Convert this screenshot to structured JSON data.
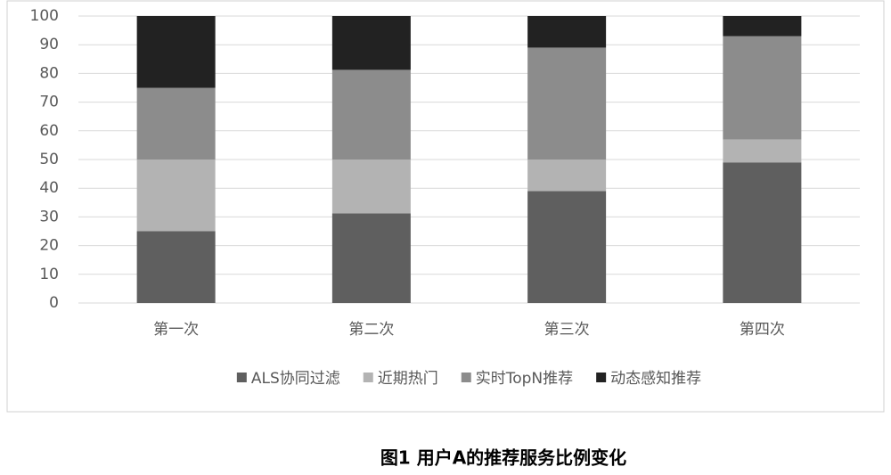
{
  "chart_data": {
    "type": "stacked_bar",
    "caption": "图1  用户A的推荐服务比例变化",
    "categories": [
      "第一次",
      "第二次",
      "第三次",
      "第四次"
    ],
    "series": [
      {
        "name": "ALS协同过滤",
        "color": "#5f5f5f",
        "values": [
          25,
          31.25,
          39,
          49
        ]
      },
      {
        "name": "近期热门",
        "color": "#b3b3b3",
        "values": [
          25,
          18.75,
          11,
          8
        ]
      },
      {
        "name": "实时TopN推荐",
        "color": "#8c8c8c",
        "values": [
          25,
          31.25,
          39,
          36
        ]
      },
      {
        "name": "动态感知推荐",
        "color": "#222222",
        "values": [
          25,
          18.75,
          11,
          7
        ]
      }
    ],
    "ylim": [
      0,
      100
    ],
    "yticks": [
      0,
      10,
      20,
      30,
      40,
      50,
      60,
      70,
      80,
      90,
      100
    ],
    "grid": true,
    "legend": "bottom"
  }
}
